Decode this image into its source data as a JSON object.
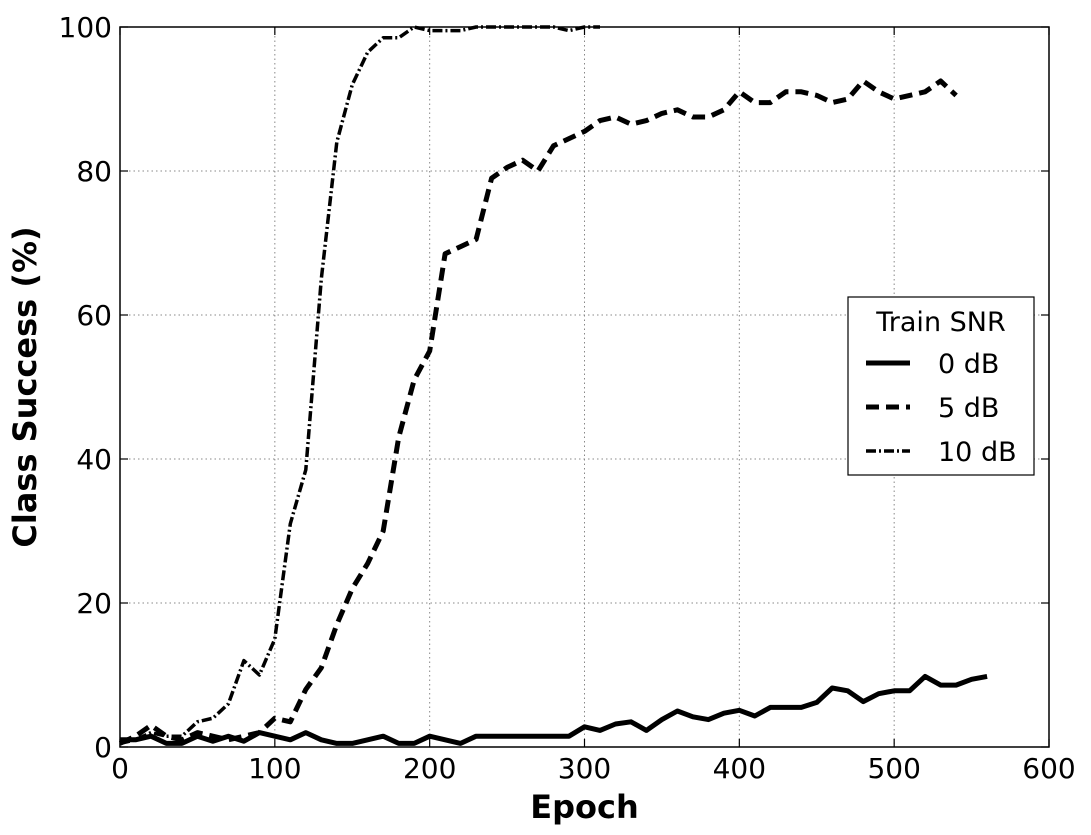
{
  "chart_data": {
    "type": "line",
    "title": "",
    "xlabel": "Epoch",
    "ylabel": "Class Success (%)",
    "xlim": [
      0,
      600
    ],
    "ylim": [
      0,
      100
    ],
    "xticks": [
      0,
      100,
      200,
      300,
      400,
      500,
      600
    ],
    "yticks": [
      0,
      20,
      40,
      60,
      80,
      100
    ],
    "grid": true,
    "legend": {
      "title": "Train SNR",
      "placement": "center-right"
    },
    "series": [
      {
        "name": "0 dB",
        "style": "solid",
        "color": "#000000",
        "x": [
          0,
          10,
          20,
          30,
          40,
          50,
          60,
          70,
          80,
          90,
          100,
          110,
          120,
          130,
          140,
          150,
          160,
          170,
          180,
          190,
          200,
          210,
          220,
          230,
          240,
          250,
          260,
          270,
          280,
          290,
          300,
          310,
          320,
          330,
          340,
          350,
          360,
          370,
          380,
          390,
          400,
          410,
          420,
          430,
          440,
          450,
          460,
          470,
          480,
          490,
          500,
          510,
          520,
          530,
          540,
          550,
          560
        ],
        "y": [
          1.0,
          1.0,
          1.5,
          0.5,
          0.5,
          1.5,
          0.8,
          1.5,
          0.8,
          2.0,
          1.5,
          1.0,
          2.0,
          1.0,
          0.5,
          0.5,
          1.0,
          1.5,
          0.5,
          0.5,
          1.5,
          1.0,
          0.5,
          1.5,
          1.5,
          1.5,
          1.5,
          1.5,
          1.5,
          1.5,
          2.8,
          2.3,
          3.2,
          3.5,
          2.3,
          3.8,
          5.0,
          4.2,
          3.8,
          4.7,
          5.1,
          4.3,
          5.5,
          5.5,
          5.5,
          6.2,
          8.2,
          7.8,
          6.3,
          7.4,
          7.8,
          7.8,
          9.8,
          8.6,
          8.6,
          9.4,
          9.8
        ]
      },
      {
        "name": "5 dB",
        "style": "dashed",
        "color": "#000000",
        "x": [
          0,
          10,
          20,
          30,
          40,
          50,
          60,
          70,
          80,
          90,
          100,
          110,
          120,
          130,
          140,
          150,
          160,
          170,
          180,
          190,
          200,
          210,
          220,
          230,
          240,
          250,
          260,
          270,
          280,
          290,
          300,
          310,
          320,
          330,
          340,
          350,
          360,
          370,
          380,
          390,
          400,
          410,
          420,
          430,
          440,
          450,
          460,
          470,
          480,
          490,
          500,
          510,
          520,
          530,
          540
        ],
        "y": [
          0.5,
          1.5,
          3.0,
          1.5,
          1.0,
          2.0,
          1.5,
          1.0,
          1.5,
          2.0,
          4.0,
          3.5,
          8.0,
          11.0,
          17.0,
          22.0,
          25.5,
          30.0,
          43.0,
          51.0,
          55.0,
          68.5,
          69.5,
          70.5,
          79.0,
          80.5,
          81.5,
          80.0,
          83.5,
          84.5,
          85.5,
          87.0,
          87.5,
          86.5,
          87.0,
          88.0,
          88.5,
          87.5,
          87.5,
          88.5,
          91.0,
          89.5,
          89.5,
          91.0,
          91.0,
          90.5,
          89.5,
          90.0,
          92.5,
          91.0,
          90.0,
          90.5,
          91.0,
          92.5,
          90.5
        ]
      },
      {
        "name": "10 dB",
        "style": "dashdot",
        "color": "#000000",
        "x": [
          0,
          10,
          20,
          30,
          40,
          50,
          60,
          70,
          80,
          90,
          100,
          110,
          120,
          130,
          140,
          150,
          160,
          170,
          180,
          190,
          200,
          210,
          220,
          230,
          240,
          250,
          260,
          270,
          280,
          290,
          300,
          310
        ],
        "y": [
          0.5,
          1.0,
          2.0,
          1.5,
          1.5,
          3.5,
          4.0,
          6.0,
          12.0,
          10.0,
          15.0,
          31.0,
          38.5,
          65.0,
          84.0,
          92.0,
          96.5,
          98.5,
          98.5,
          100.0,
          99.5,
          99.5,
          99.5,
          100.0,
          100.0,
          100.0,
          100.0,
          100.0,
          100.0,
          99.5,
          100.0,
          100.0
        ]
      }
    ]
  }
}
